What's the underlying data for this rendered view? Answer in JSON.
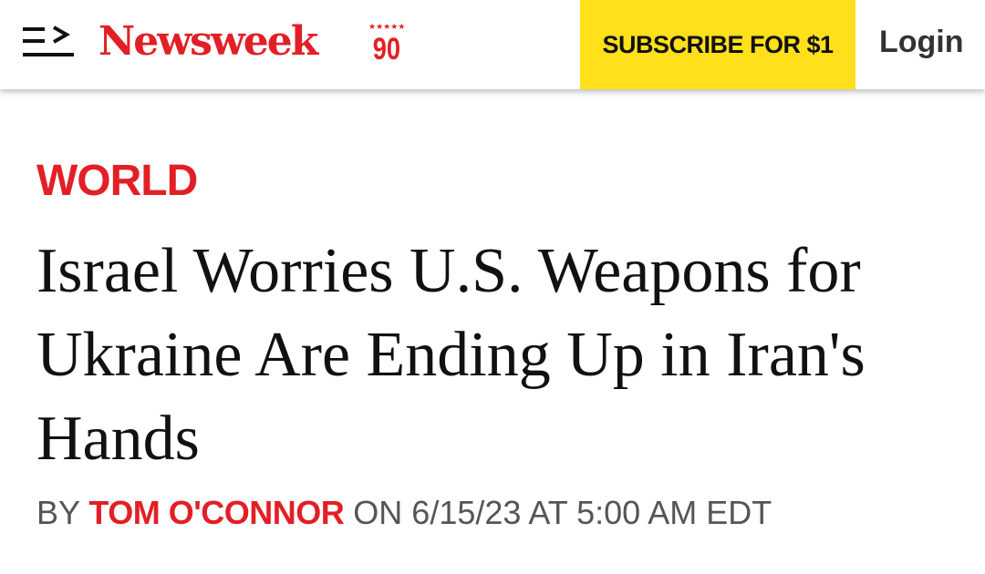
{
  "header": {
    "logo": "Newsweek",
    "anniversary": "90",
    "anniversary_stars": "★★★★★",
    "subscribe_label": "SUBSCRIBE FOR $1",
    "login_label": "Login",
    "brand_color": "#e31f26",
    "subscribe_color": "#ffe01b"
  },
  "article": {
    "section": "WORLD",
    "headline": "Israel Worries U.S. Weapons for Ukraine Are Ending Up in Iran's Hands",
    "by": "BY",
    "author": "TOM O'CONNOR",
    "date_text": "ON 6/15/23 AT 5:00 AM EDT"
  }
}
